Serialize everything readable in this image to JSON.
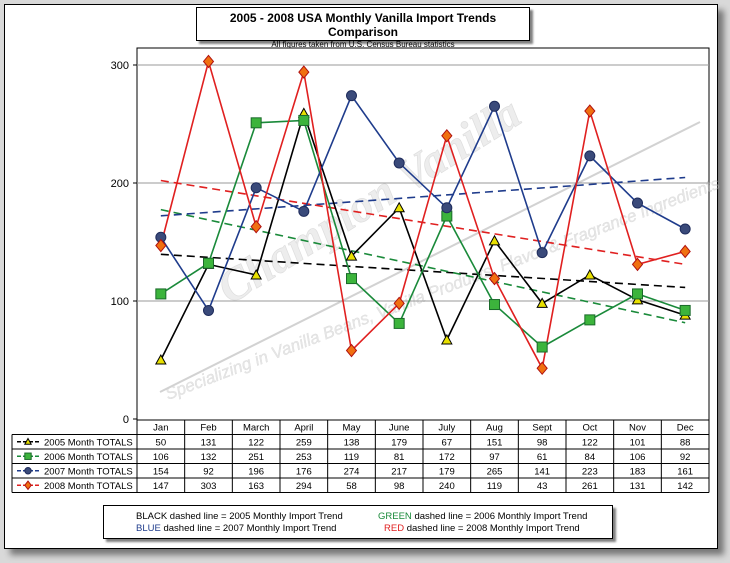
{
  "title": "2005 - 2008 USA Monthly Vanilla Import Trends Comparison",
  "subtitle": "All figures taken from U.S. Census Bureau statistics",
  "watermark": {
    "brand": "Champion Vanilla",
    "tagline": "Specializing in Vanilla Beans, Vanilla Products, Flavor & Fragrance Ingredients"
  },
  "legend": [
    {
      "color_word": "BLACK",
      "text": "dashed line = 2005 Monthly Import Trend",
      "color": "#000000"
    },
    {
      "color_word": "GREEN",
      "text": "dashed line = 2006 Monthly Import Trend",
      "color": "#1a8a3a"
    },
    {
      "color_word": "BLUE",
      "text": "dashed line = 2007 Monthly Import Trend",
      "color": "#1f3c8c"
    },
    {
      "color_word": "RED",
      "text": "dashed line = 2008 Monthly Import Trend",
      "color": "#e02020"
    }
  ],
  "chart_data": {
    "type": "line",
    "title": "2005 - 2008 USA Monthly Vanilla Import Trends Comparison",
    "categories": [
      "Jan",
      "Feb",
      "March",
      "April",
      "May",
      "June",
      "July",
      "Aug",
      "Sept",
      "Oct",
      "Nov",
      "Dec"
    ],
    "ylim": [
      0,
      300
    ],
    "yticks": [
      0,
      100,
      200,
      300
    ],
    "grid": true,
    "series": [
      {
        "name": "2005 Month TOTALS",
        "color": "#000000",
        "marker": "triangle",
        "marker_fill": "#e8e000",
        "values": [
          50,
          131,
          122,
          259,
          138,
          179,
          67,
          151,
          98,
          122,
          101,
          88
        ]
      },
      {
        "name": "2006 Month TOTALS",
        "color": "#1a8a3a",
        "marker": "square",
        "marker_fill": "#3cb43c",
        "values": [
          106,
          132,
          251,
          253,
          119,
          81,
          172,
          97,
          61,
          84,
          106,
          92
        ]
      },
      {
        "name": "2007 Month TOTALS",
        "color": "#1f3c8c",
        "marker": "circle",
        "marker_fill": "#3a4a7a",
        "values": [
          154,
          92,
          196,
          176,
          274,
          217,
          179,
          265,
          141,
          223,
          183,
          161
        ]
      },
      {
        "name": "2008 Month TOTALS",
        "color": "#e02020",
        "marker": "diamond",
        "marker_fill": "#f07010",
        "values": [
          147,
          303,
          163,
          294,
          58,
          98,
          240,
          119,
          43,
          261,
          131,
          142
        ]
      }
    ]
  }
}
